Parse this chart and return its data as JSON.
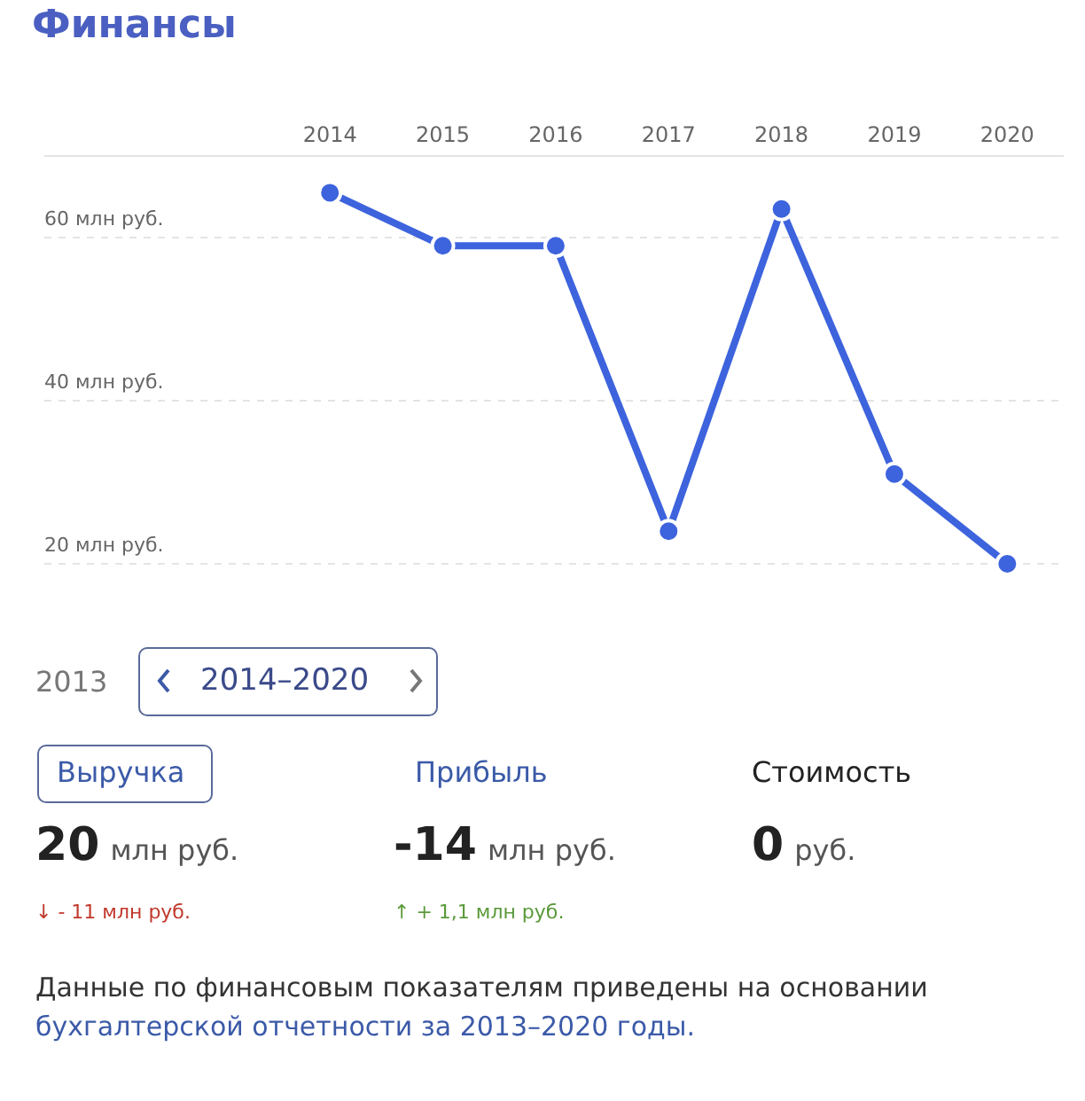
{
  "chart_data": {
    "type": "line",
    "title": "Финансы",
    "categories": [
      "2014",
      "2015",
      "2016",
      "2017",
      "2018",
      "2019",
      "2020"
    ],
    "series": [
      {
        "color": "#3d63dd",
        "values": [
          65.5,
          59,
          59,
          24,
          63.5,
          31,
          20
        ]
      }
    ],
    "yticks": [
      {
        "value": 20,
        "label": "20 млн руб."
      },
      {
        "value": 40,
        "label": "40 млн руб."
      },
      {
        "value": 60,
        "label": "60 млн руб."
      }
    ],
    "ylim": [
      20,
      70
    ],
    "grid": "y",
    "marker": "circle",
    "line_style": "solid",
    "annotations": [
      "2013",
      "2014–2020",
      "Выручка",
      "Прибыль",
      "Стоимость",
      "20",
      "млн руб.",
      "-14",
      "млн руб.",
      "0",
      "руб.",
      "↓ - 11 млн руб.",
      "↑ + 1,1 млн руб.",
      "Данные по финансовым показателям приведены на основании ",
      "бухгалтерской отчетности за 2013–2020 годы."
    ]
  }
}
